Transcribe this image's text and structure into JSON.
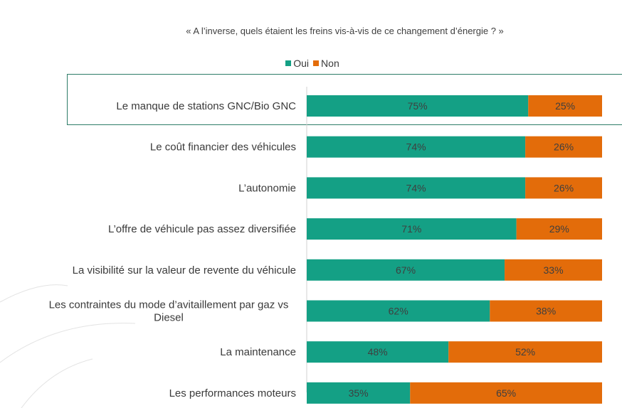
{
  "colors": {
    "oui": "#14a085",
    "non": "#e36c0a",
    "axis": "#d0d0d0",
    "highlight": "#2e7d68"
  },
  "chart_data": {
    "type": "bar",
    "orientation": "horizontal",
    "stacked": true,
    "percent_stacked": true,
    "title": "« A l’inverse, quels étaient les freins vis-à-vis de ce changement d’énergie ? »",
    "categories": [
      "Le manque de stations GNC/Bio GNC",
      "Le coût financier des véhicules",
      "L’autonomie",
      "L’offre de véhicule pas assez diversifiée",
      "La visibilité sur la valeur de revente du véhicule",
      "Les contraintes du mode d’avitaillement par gaz vs Diesel",
      "La maintenance",
      "Les performances moteurs"
    ],
    "series": [
      {
        "name": "Oui",
        "values": [
          75,
          74,
          74,
          71,
          67,
          62,
          48,
          35
        ]
      },
      {
        "name": "Non",
        "values": [
          25,
          26,
          26,
          29,
          33,
          38,
          52,
          65
        ]
      }
    ],
    "xlim": [
      0,
      100
    ],
    "grid": false,
    "legend_position": "top"
  }
}
